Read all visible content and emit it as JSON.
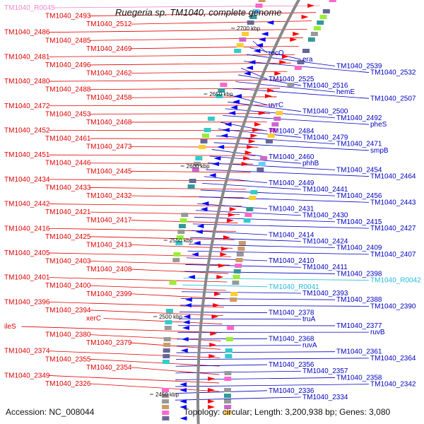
{
  "title": "Ruegeria sp. TM1040, complete genome",
  "accession": "Accession: NC_008044",
  "summary": "Topology: circular; Length: 3,200,938 bp; Genes: 3,080",
  "colors": {
    "forward_label": "#e00000",
    "reverse_label": "#0000c0",
    "rna_forward": "#ee88cc",
    "rna_reverse": "#22bbdd",
    "backbone": "#888888",
    "forward_strand": "#ff0000",
    "reverse_strand": "#0000ff"
  },
  "scale_ticks": [
    {
      "label": "2700 kbp"
    },
    {
      "label": "2650 kbp"
    },
    {
      "label": "2600 kbp"
    },
    {
      "label": "2550 kbp"
    },
    {
      "label": "2500 kbp"
    },
    {
      "label": "2450 kbp"
    }
  ],
  "left_labels": [
    {
      "text": "TM1040_R0045",
      "kind": "rna"
    },
    {
      "text": "TM1040_2493"
    },
    {
      "text": "TM1040_2512"
    },
    {
      "text": "TM1040_2486"
    },
    {
      "text": "TM1040_2485"
    },
    {
      "text": "TM1040_2469"
    },
    {
      "text": "TM1040_2481"
    },
    {
      "text": "TM1040_2496"
    },
    {
      "text": "TM1040_2462"
    },
    {
      "text": "TM1040_2480"
    },
    {
      "text": "TM1040_2488"
    },
    {
      "text": "TM1040_2458"
    },
    {
      "text": "TM1040_2472"
    },
    {
      "text": "TM1040_2453"
    },
    {
      "text": "TM1040_2468"
    },
    {
      "text": "TM1040_2452"
    },
    {
      "text": "TM1040_2461"
    },
    {
      "text": "TM1040_2473"
    },
    {
      "text": "TM1040_2451"
    },
    {
      "text": "TM1040_2446"
    },
    {
      "text": "TM1040_2445"
    },
    {
      "text": "TM1040_2434"
    },
    {
      "text": "TM1040_2433"
    },
    {
      "text": "TM1040_2432"
    },
    {
      "text": "TM1040_2442"
    },
    {
      "text": "TM1040_2421"
    },
    {
      "text": "TM1040_2417"
    },
    {
      "text": "TM1040_2416"
    },
    {
      "text": "TM1040_2425"
    },
    {
      "text": "TM1040_2413"
    },
    {
      "text": "TM1040_2405"
    },
    {
      "text": "TM1040_2403"
    },
    {
      "text": "TM1040_2408"
    },
    {
      "text": "TM1040_2401"
    },
    {
      "text": "TM1040_2400"
    },
    {
      "text": "TM1040_2399"
    },
    {
      "text": "TM1040_2396"
    },
    {
      "text": "TM1040_2394"
    },
    {
      "text": "xerC"
    },
    {
      "text": "ileS"
    },
    {
      "text": "TM1040_2380"
    },
    {
      "text": "TM1040_2379"
    },
    {
      "text": "TM1040_2374"
    },
    {
      "text": "TM1040_2355"
    },
    {
      "text": "TM1040_2354"
    },
    {
      "text": "TM1040_2349"
    },
    {
      "text": "TM1040_2326"
    }
  ],
  "right_labels": [
    {
      "text": "recO"
    },
    {
      "text": "era"
    },
    {
      "text": "TM1040_2539"
    },
    {
      "text": "TM1040_2532"
    },
    {
      "text": "TM1040_2525"
    },
    {
      "text": "TM1040_2516"
    },
    {
      "text": "hemE"
    },
    {
      "text": "TM1040_2507"
    },
    {
      "text": "uvrC"
    },
    {
      "text": "TM1040_2500"
    },
    {
      "text": "TM1040_2492"
    },
    {
      "text": "pheS"
    },
    {
      "text": "TM1040_2484"
    },
    {
      "text": "TM1040_2479"
    },
    {
      "text": "TM1040_2471"
    },
    {
      "text": "smpB"
    },
    {
      "text": "TM1040_2460"
    },
    {
      "text": "phhB"
    },
    {
      "text": "TM1040_2454"
    },
    {
      "text": "TM1040_2464"
    },
    {
      "text": "TM1040_2449"
    },
    {
      "text": "TM1040_2441"
    },
    {
      "text": "TM1040_2456"
    },
    {
      "text": "TM1040_2443"
    },
    {
      "text": "TM1040_2431"
    },
    {
      "text": "TM1040_2430"
    },
    {
      "text": "TM1040_2415"
    },
    {
      "text": "TM1040_2427"
    },
    {
      "text": "TM1040_2414"
    },
    {
      "text": "TM1040_2424"
    },
    {
      "text": "TM1040_2409"
    },
    {
      "text": "TM1040_2407"
    },
    {
      "text": "TM1040_2410"
    },
    {
      "text": "TM1040_2411"
    },
    {
      "text": "TM1040_2398"
    },
    {
      "text": "TM1040_R0042",
      "kind": "rna"
    },
    {
      "text": "TM1040_R0041",
      "kind": "rna"
    },
    {
      "text": "TM1040_2393"
    },
    {
      "text": "TM1040_2388"
    },
    {
      "text": "TM1040_2390"
    },
    {
      "text": "TM1040_2378"
    },
    {
      "text": "truA"
    },
    {
      "text": "TM1040_2377"
    },
    {
      "text": "ruvB"
    },
    {
      "text": "TM1040_2368"
    },
    {
      "text": "ruvA"
    },
    {
      "text": "TM1040_2361"
    },
    {
      "text": "TM1040_2364"
    },
    {
      "text": "TM1040_2356"
    },
    {
      "text": "TM1040_2357"
    },
    {
      "text": "TM1040_2358"
    },
    {
      "text": "TM1040_2342"
    },
    {
      "text": "TM1040_2336"
    },
    {
      "text": "TM1040_2334"
    }
  ]
}
